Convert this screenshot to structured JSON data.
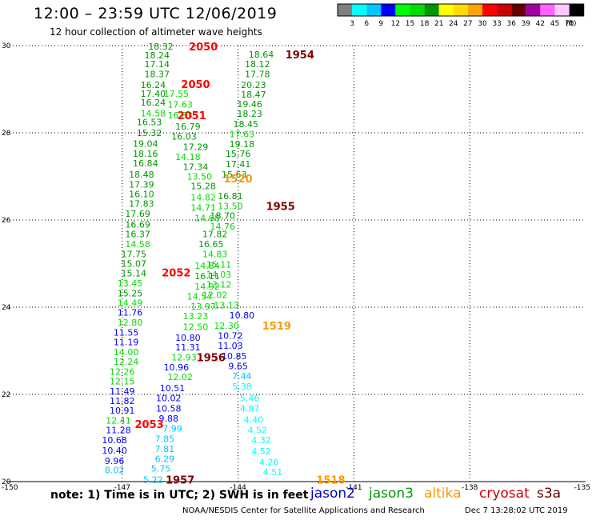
{
  "header": {
    "title": "12:00 – 23:59 UTC 12/06/2019",
    "subtitle": "12 hour collection of altimeter wave heights"
  },
  "colorbar": {
    "ticks": [
      "3",
      "6",
      "9",
      "12",
      "15",
      "18",
      "21",
      "24",
      "27",
      "30",
      "33",
      "36",
      "39",
      "42",
      "45",
      "70"
    ],
    "unit": "(ft)",
    "colors": [
      "#808080",
      "#00ffff",
      "#00c8ff",
      "#0000ff",
      "#00ff00",
      "#00dc00",
      "#009600",
      "#ffff00",
      "#ffdc00",
      "#ffa500",
      "#ff0000",
      "#c80000",
      "#640000",
      "#a000a0",
      "#ff64ff",
      "#ffc8ff",
      "#000000"
    ]
  },
  "axes": {
    "lon_ticks": [
      "-150",
      "-147",
      "-144",
      "-141",
      "-138",
      "-135"
    ],
    "lat_ticks": [
      "30",
      "28",
      "26",
      "24",
      "22",
      "20"
    ]
  },
  "satellites": [
    {
      "name": "jason2",
      "color": "#0000cc"
    },
    {
      "name": "jason3",
      "color": "#009900"
    },
    {
      "name": "altika",
      "color": "#ff9900"
    },
    {
      "name": "cryosat",
      "color": "#cc0000"
    },
    {
      "name": "s3a",
      "color": "#660000"
    }
  ],
  "note": "note: 1) Time is in UTC; 2) SWH is in feet",
  "footer": {
    "credit": "NOAA/NESDIS Center for Satellite Applications and Research",
    "timestamp": "Dec  7 13:28:02 UTC 2019"
  },
  "chart_data": {
    "type": "scatter",
    "xlim": [
      -150,
      -135
    ],
    "ylim": [
      20,
      30
    ],
    "obs": [
      {
        "t": "18.32",
        "lon": -146.0,
        "lat": 29.98,
        "c": "#009600"
      },
      {
        "t": "18.24",
        "lon": -146.1,
        "lat": 29.78,
        "c": "#009600"
      },
      {
        "t": "17.14",
        "lon": -146.1,
        "lat": 29.58,
        "c": "#009600"
      },
      {
        "t": "18.37",
        "lon": -146.1,
        "lat": 29.35,
        "c": "#009600"
      },
      {
        "t": "16.24",
        "lon": -146.2,
        "lat": 29.1,
        "c": "#009600"
      },
      {
        "t": "17.40",
        "lon": -146.2,
        "lat": 28.9,
        "c": "#009600"
      },
      {
        "t": "16.24",
        "lon": -146.2,
        "lat": 28.7,
        "c": "#009600"
      },
      {
        "t": "14.58",
        "lon": -146.2,
        "lat": 28.45,
        "c": "#00dc00"
      },
      {
        "t": "16.53",
        "lon": -146.3,
        "lat": 28.25,
        "c": "#009600"
      },
      {
        "t": "15.32",
        "lon": -146.3,
        "lat": 28.0,
        "c": "#009600"
      },
      {
        "t": "19.04",
        "lon": -146.4,
        "lat": 27.75,
        "c": "#009600"
      },
      {
        "t": "18.16",
        "lon": -146.4,
        "lat": 27.52,
        "c": "#009600"
      },
      {
        "t": "16.84",
        "lon": -146.4,
        "lat": 27.3,
        "c": "#009600"
      },
      {
        "t": "18.48",
        "lon": -146.5,
        "lat": 27.05,
        "c": "#009600"
      },
      {
        "t": "17.39",
        "lon": -146.5,
        "lat": 26.82,
        "c": "#009600"
      },
      {
        "t": "16.10",
        "lon": -146.5,
        "lat": 26.6,
        "c": "#009600"
      },
      {
        "t": "17.83",
        "lon": -146.5,
        "lat": 26.38,
        "c": "#009600"
      },
      {
        "t": "17.69",
        "lon": -146.6,
        "lat": 26.15,
        "c": "#009600"
      },
      {
        "t": "16.69",
        "lon": -146.6,
        "lat": 25.9,
        "c": "#009600"
      },
      {
        "t": "16.37",
        "lon": -146.6,
        "lat": 25.68,
        "c": "#009600"
      },
      {
        "t": "14.58",
        "lon": -146.6,
        "lat": 25.45,
        "c": "#00dc00"
      },
      {
        "t": "17.75",
        "lon": -146.7,
        "lat": 25.22,
        "c": "#009600"
      },
      {
        "t": "15.07",
        "lon": -146.7,
        "lat": 25.0,
        "c": "#009600"
      },
      {
        "t": "15.14",
        "lon": -146.7,
        "lat": 24.78,
        "c": "#009600"
      },
      {
        "t": "13.45",
        "lon": -146.8,
        "lat": 24.55,
        "c": "#00dc00"
      },
      {
        "t": "15.25",
        "lon": -146.8,
        "lat": 24.32,
        "c": "#009600"
      },
      {
        "t": "14.49",
        "lon": -146.8,
        "lat": 24.1,
        "c": "#00dc00"
      },
      {
        "t": "11.76",
        "lon": -146.8,
        "lat": 23.88,
        "c": "#0000ff"
      },
      {
        "t": "12.80",
        "lon": -146.8,
        "lat": 23.65,
        "c": "#00dc00"
      },
      {
        "t": "11.55",
        "lon": -146.9,
        "lat": 23.42,
        "c": "#0000ff"
      },
      {
        "t": "11.19",
        "lon": -146.9,
        "lat": 23.2,
        "c": "#0000ff"
      },
      {
        "t": "14.00",
        "lon": -146.9,
        "lat": 22.97,
        "c": "#00dc00"
      },
      {
        "t": "12.24",
        "lon": -146.9,
        "lat": 22.75,
        "c": "#00dc00"
      },
      {
        "t": "12.26",
        "lon": -147.0,
        "lat": 22.52,
        "c": "#00dc00"
      },
      {
        "t": "12.15",
        "lon": -147.0,
        "lat": 22.3,
        "c": "#00dc00"
      },
      {
        "t": "11.49",
        "lon": -147.0,
        "lat": 22.07,
        "c": "#0000ff"
      },
      {
        "t": "11.82",
        "lon": -147.0,
        "lat": 21.85,
        "c": "#0000ff"
      },
      {
        "t": "10.91",
        "lon": -147.0,
        "lat": 21.63,
        "c": "#0000ff"
      },
      {
        "t": "12.41",
        "lon": -147.1,
        "lat": 21.4,
        "c": "#00dc00"
      },
      {
        "t": "11.28",
        "lon": -147.1,
        "lat": 21.18,
        "c": "#0000ff"
      },
      {
        "t": "10.68",
        "lon": -147.2,
        "lat": 20.95,
        "c": "#0000ff"
      },
      {
        "t": "10.40",
        "lon": -147.2,
        "lat": 20.72,
        "c": "#0000ff"
      },
      {
        "t": "9.96",
        "lon": -147.2,
        "lat": 20.48,
        "c": "#0000ff"
      },
      {
        "t": "8.02",
        "lon": -147.2,
        "lat": 20.27,
        "c": "#00c8ff"
      },
      {
        "t": "17.55",
        "lon": -145.6,
        "lat": 28.9,
        "c": "#00dc00"
      },
      {
        "t": "17.63",
        "lon": -145.5,
        "lat": 28.65,
        "c": "#00dc00"
      },
      {
        "t": "16.83",
        "lon": -145.5,
        "lat": 28.4,
        "c": "#00dc00"
      },
      {
        "t": "16.79",
        "lon": -145.3,
        "lat": 28.15,
        "c": "#009600"
      },
      {
        "t": "16.03",
        "lon": -145.4,
        "lat": 27.92,
        "c": "#009600"
      },
      {
        "t": "17.29",
        "lon": -145.1,
        "lat": 27.68,
        "c": "#009600"
      },
      {
        "t": "14.18",
        "lon": -145.3,
        "lat": 27.45,
        "c": "#00dc00"
      },
      {
        "t": "17.34",
        "lon": -145.1,
        "lat": 27.22,
        "c": "#009600"
      },
      {
        "t": "13.50",
        "lon": -145.0,
        "lat": 27.0,
        "c": "#00dc00"
      },
      {
        "t": "15.28",
        "lon": -144.9,
        "lat": 26.78,
        "c": "#009600"
      },
      {
        "t": "14.82",
        "lon": -144.9,
        "lat": 26.52,
        "c": "#00dc00"
      },
      {
        "t": "14.71",
        "lon": -144.9,
        "lat": 26.28,
        "c": "#00dc00"
      },
      {
        "t": "14.68",
        "lon": -144.8,
        "lat": 26.05,
        "c": "#00dc00"
      },
      {
        "t": "17.82",
        "lon": -144.6,
        "lat": 25.68,
        "c": "#009600"
      },
      {
        "t": "16.65",
        "lon": -144.7,
        "lat": 25.45,
        "c": "#009600"
      },
      {
        "t": "14.84",
        "lon": -144.8,
        "lat": 24.95,
        "c": "#00dc00"
      },
      {
        "t": "16.11",
        "lon": -144.8,
        "lat": 24.72,
        "c": "#009600"
      },
      {
        "t": "14.92",
        "lon": -144.8,
        "lat": 24.48,
        "c": "#00dc00"
      },
      {
        "t": "14.54",
        "lon": -145.0,
        "lat": 24.25,
        "c": "#00dc00"
      },
      {
        "t": "13.97",
        "lon": -144.9,
        "lat": 24.02,
        "c": "#00dc00"
      },
      {
        "t": "13.23",
        "lon": -145.1,
        "lat": 23.8,
        "c": "#00dc00"
      },
      {
        "t": "12.50",
        "lon": -145.1,
        "lat": 23.55,
        "c": "#00dc00"
      },
      {
        "t": "10.80",
        "lon": -145.3,
        "lat": 23.3,
        "c": "#0000ff"
      },
      {
        "t": "11.31",
        "lon": -145.3,
        "lat": 23.08,
        "c": "#0000ff"
      },
      {
        "t": "12.93",
        "lon": -145.4,
        "lat": 22.85,
        "c": "#00dc00"
      },
      {
        "t": "10.96",
        "lon": -145.6,
        "lat": 22.62,
        "c": "#0000ff"
      },
      {
        "t": "12.02",
        "lon": -145.5,
        "lat": 22.4,
        "c": "#00dc00"
      },
      {
        "t": "10.51",
        "lon": -145.7,
        "lat": 22.15,
        "c": "#0000ff"
      },
      {
        "t": "10.02",
        "lon": -145.8,
        "lat": 21.92,
        "c": "#0000ff"
      },
      {
        "t": "10.58",
        "lon": -145.8,
        "lat": 21.68,
        "c": "#0000ff"
      },
      {
        "t": "9.88",
        "lon": -145.8,
        "lat": 21.45,
        "c": "#0000ff"
      },
      {
        "t": "7.99",
        "lon": -145.7,
        "lat": 21.22,
        "c": "#00c8ff"
      },
      {
        "t": "7.85",
        "lon": -145.9,
        "lat": 20.98,
        "c": "#00c8ff"
      },
      {
        "t": "7.81",
        "lon": -145.9,
        "lat": 20.75,
        "c": "#00c8ff"
      },
      {
        "t": "6.29",
        "lon": -145.9,
        "lat": 20.52,
        "c": "#00c8ff"
      },
      {
        "t": "5.75",
        "lon": -146.0,
        "lat": 20.3,
        "c": "#00c8ff"
      },
      {
        "t": "5.22",
        "lon": -146.2,
        "lat": 20.05,
        "c": "#00c8ff"
      },
      {
        "t": "18.64",
        "lon": -143.4,
        "lat": 29.8,
        "c": "#009600"
      },
      {
        "t": "18.12",
        "lon": -143.5,
        "lat": 29.58,
        "c": "#009600"
      },
      {
        "t": "17.78",
        "lon": -143.5,
        "lat": 29.35,
        "c": "#009600"
      },
      {
        "t": "20.23",
        "lon": -143.6,
        "lat": 29.1,
        "c": "#009600"
      },
      {
        "t": "18.47",
        "lon": -143.6,
        "lat": 28.88,
        "c": "#009600"
      },
      {
        "t": "19.46",
        "lon": -143.7,
        "lat": 28.66,
        "c": "#009600"
      },
      {
        "t": "18.23",
        "lon": -143.7,
        "lat": 28.44,
        "c": "#009600"
      },
      {
        "t": "18.45",
        "lon": -143.8,
        "lat": 28.2,
        "c": "#009600"
      },
      {
        "t": "17.63",
        "lon": -143.9,
        "lat": 27.97,
        "c": "#00dc00"
      },
      {
        "t": "19.18",
        "lon": -143.9,
        "lat": 27.74,
        "c": "#009600"
      },
      {
        "t": "15.76",
        "lon": -144.0,
        "lat": 27.52,
        "c": "#009600"
      },
      {
        "t": "17.41",
        "lon": -144.0,
        "lat": 27.28,
        "c": "#009600"
      },
      {
        "t": "15.63",
        "lon": -144.1,
        "lat": 27.05,
        "c": "#009600"
      },
      {
        "t": "16.81",
        "lon": -144.2,
        "lat": 26.55,
        "c": "#009600"
      },
      {
        "t": "13.50",
        "lon": -144.2,
        "lat": 26.32,
        "c": "#00dc00"
      },
      {
        "t": "18.70",
        "lon": -144.4,
        "lat": 26.1,
        "c": "#009600"
      },
      {
        "t": "14.76",
        "lon": -144.4,
        "lat": 25.85,
        "c": "#00dc00"
      },
      {
        "t": "14.83",
        "lon": -144.6,
        "lat": 25.22,
        "c": "#00dc00"
      },
      {
        "t": "15.11",
        "lon": -144.5,
        "lat": 24.98,
        "c": "#00dc00"
      },
      {
        "t": "14.03",
        "lon": -144.5,
        "lat": 24.75,
        "c": "#00dc00"
      },
      {
        "t": "13.12",
        "lon": -144.5,
        "lat": 24.52,
        "c": "#00dc00"
      },
      {
        "t": "12.02",
        "lon": -144.6,
        "lat": 24.28,
        "c": "#00dc00"
      },
      {
        "t": "13.13",
        "lon": -144.3,
        "lat": 24.05,
        "c": "#00dc00"
      },
      {
        "t": "10.80",
        "lon": -143.9,
        "lat": 23.82,
        "c": "#0000ff"
      },
      {
        "t": "12.30",
        "lon": -144.3,
        "lat": 23.58,
        "c": "#00dc00"
      },
      {
        "t": "10.72",
        "lon": -144.2,
        "lat": 23.35,
        "c": "#0000ff"
      },
      {
        "t": "11.03",
        "lon": -144.2,
        "lat": 23.12,
        "c": "#0000ff"
      },
      {
        "t": "10.85",
        "lon": -144.1,
        "lat": 22.88,
        "c": "#0000ff"
      },
      {
        "t": "9.65",
        "lon": -144.0,
        "lat": 22.65,
        "c": "#0000ff"
      },
      {
        "t": "7.44",
        "lon": -143.9,
        "lat": 22.42,
        "c": "#00c8ff"
      },
      {
        "t": "5.38",
        "lon": -143.9,
        "lat": 22.18,
        "c": "#00ffff"
      },
      {
        "t": "5.46",
        "lon": -143.7,
        "lat": 21.92,
        "c": "#00ffff"
      },
      {
        "t": "4.87",
        "lon": -143.7,
        "lat": 21.68,
        "c": "#00ffff"
      },
      {
        "t": "4.40",
        "lon": -143.6,
        "lat": 21.42,
        "c": "#00ffff"
      },
      {
        "t": "4.52",
        "lon": -143.5,
        "lat": 21.18,
        "c": "#00ffff"
      },
      {
        "t": "4.32",
        "lon": -143.4,
        "lat": 20.95,
        "c": "#00ffff"
      },
      {
        "t": "4.52",
        "lon": -143.4,
        "lat": 20.7,
        "c": "#00ffff"
      },
      {
        "t": "4.26",
        "lon": -143.2,
        "lat": 20.45,
        "c": "#00ffff"
      },
      {
        "t": "4.51",
        "lon": -143.1,
        "lat": 20.22,
        "c": "#00ffff"
      }
    ],
    "passes": [
      {
        "t": "2050",
        "lon": -144.9,
        "lat": 29.98,
        "c": "#ff0000"
      },
      {
        "t": "2050",
        "lon": -145.1,
        "lat": 29.12,
        "c": "#ff0000"
      },
      {
        "t": "2051",
        "lon": -145.2,
        "lat": 28.4,
        "c": "#ff0000"
      },
      {
        "t": "2052",
        "lon": -145.6,
        "lat": 24.8,
        "c": "#ff0000"
      },
      {
        "t": "2053",
        "lon": -146.3,
        "lat": 21.32,
        "c": "#ff0000"
      },
      {
        "t": "1954",
        "lon": -142.4,
        "lat": 29.8,
        "c": "#800000"
      },
      {
        "t": "1955",
        "lon": -142.9,
        "lat": 26.32,
        "c": "#800000"
      },
      {
        "t": "1956",
        "lon": -144.7,
        "lat": 22.85,
        "c": "#800000"
      },
      {
        "t": "1957",
        "lon": -145.5,
        "lat": 20.05,
        "c": "#800000"
      },
      {
        "t": "1520",
        "lon": -144.0,
        "lat": 26.95,
        "c": "#ff9900"
      },
      {
        "t": "1519",
        "lon": -143.0,
        "lat": 23.58,
        "c": "#ff9900"
      },
      {
        "t": "1518",
        "lon": -141.6,
        "lat": 20.05,
        "c": "#ff9900"
      }
    ]
  }
}
